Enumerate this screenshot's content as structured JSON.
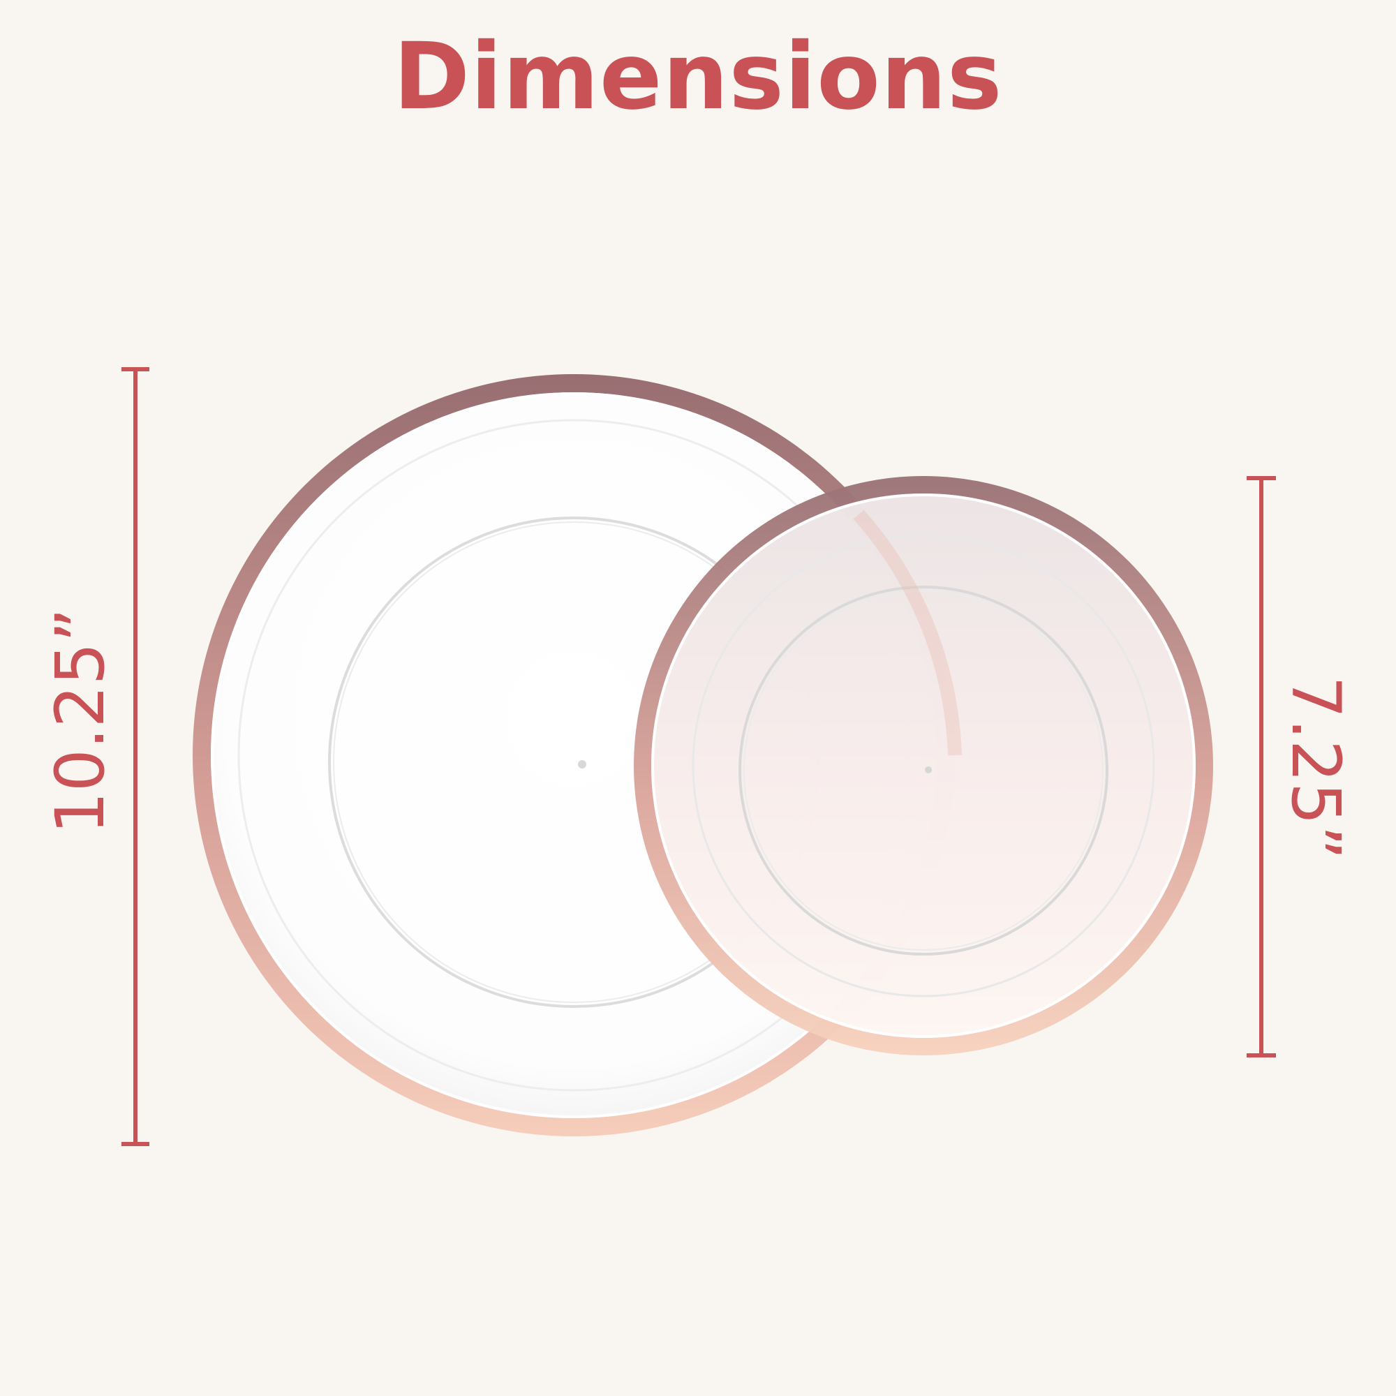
{
  "title": "Dimensions",
  "accent_color": "#c85256",
  "rim_color_top": "#9a6d70",
  "rim_color_bottom": "#f5c7b6",
  "dimensions": {
    "large_plate": "10.25”",
    "small_plate": "7.25”"
  }
}
